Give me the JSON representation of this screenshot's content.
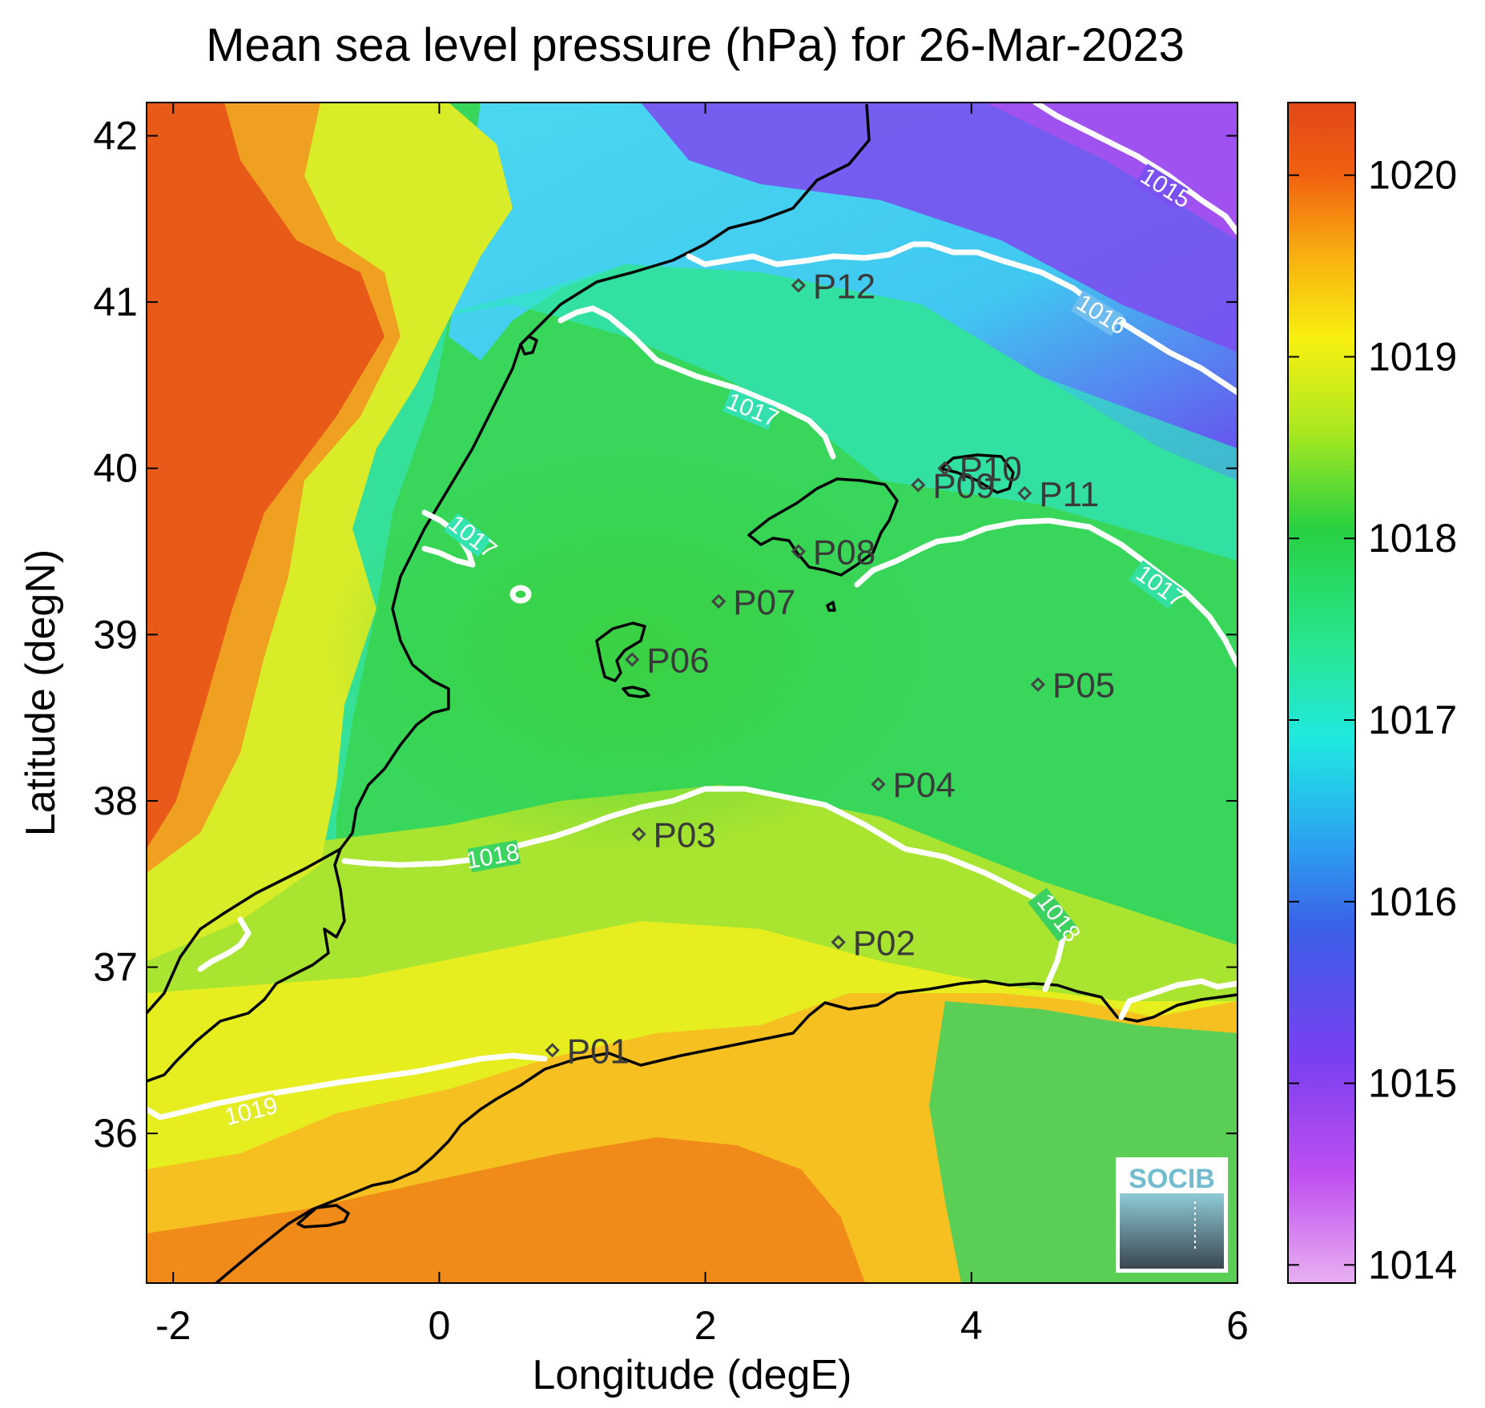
{
  "title": "Mean sea level pressure (hPa) for 26-Mar-2023",
  "map": {
    "xlabel": "Longitude (degE)",
    "ylabel": "Latitude (degN)",
    "xlim": [
      -2.2,
      6.0
    ],
    "ylim": [
      35.1,
      42.2
    ],
    "xticks": [
      -2,
      0,
      2,
      4,
      6
    ],
    "yticks": [
      36,
      37,
      38,
      39,
      40,
      41,
      42
    ]
  },
  "colorbar": {
    "range": [
      1013.9,
      1020.4
    ],
    "ticks": [
      1014,
      1015,
      1016,
      1017,
      1018,
      1019,
      1020
    ],
    "colors": [
      "#e8b0f0",
      "#c050f0",
      "#7a3ff0",
      "#3b5fe8",
      "#2aa8f0",
      "#20e8e0",
      "#28e690",
      "#28d040",
      "#a8e820",
      "#f8f010",
      "#f8b010",
      "#f06010",
      "#e04818"
    ]
  },
  "isobar_labels": [
    {
      "text": "1015"
    },
    {
      "text": "1016"
    },
    {
      "text": "1017"
    },
    {
      "text": "1017"
    },
    {
      "text": "1017"
    },
    {
      "text": "1018"
    },
    {
      "text": "1018"
    },
    {
      "text": "1019"
    }
  ],
  "stations": [
    {
      "id": "P01",
      "lon": 0.85,
      "lat": 36.5
    },
    {
      "id": "P02",
      "lon": 3.0,
      "lat": 37.15
    },
    {
      "id": "P03",
      "lon": 1.5,
      "lat": 37.8
    },
    {
      "id": "P04",
      "lon": 3.3,
      "lat": 38.1
    },
    {
      "id": "P05",
      "lon": 4.5,
      "lat": 38.7
    },
    {
      "id": "P06",
      "lon": 1.45,
      "lat": 38.85
    },
    {
      "id": "P07",
      "lon": 2.1,
      "lat": 39.2
    },
    {
      "id": "P08",
      "lon": 2.7,
      "lat": 39.5
    },
    {
      "id": "P09",
      "lon": 3.6,
      "lat": 39.9
    },
    {
      "id": "P10",
      "lon": 3.8,
      "lat": 40.0
    },
    {
      "id": "P11",
      "lon": 4.4,
      "lat": 39.85
    },
    {
      "id": "P12",
      "lon": 2.7,
      "lat": 41.1
    }
  ],
  "logo": {
    "text": "SOCIB"
  }
}
